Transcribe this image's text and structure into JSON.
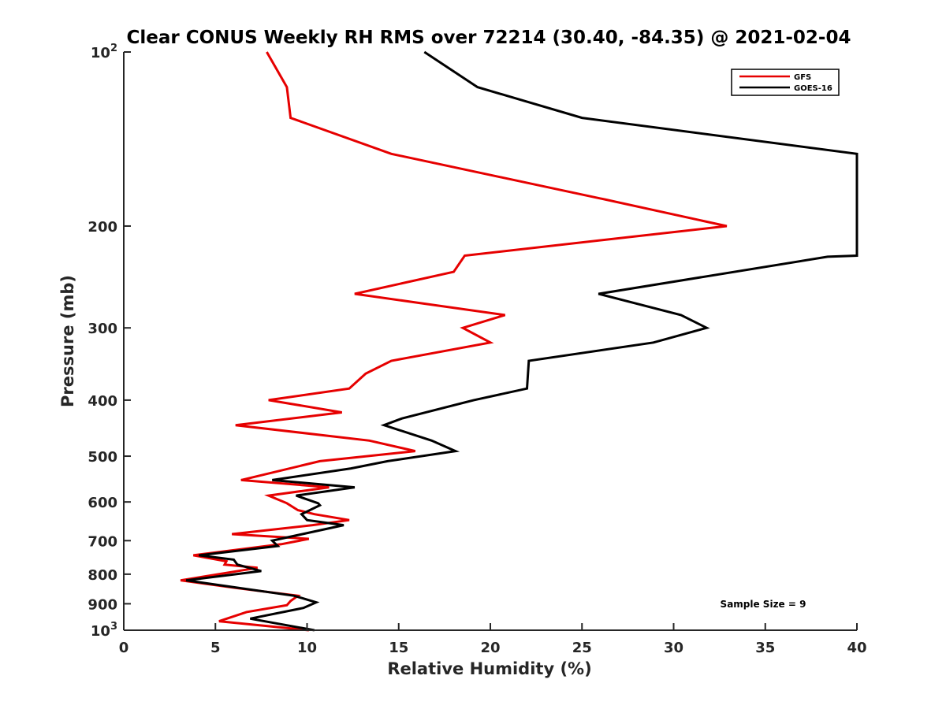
{
  "chart_data": {
    "type": "line",
    "title": "Clear CONUS Weekly RH RMS over 72214 (30.40, -84.35) @ 2021-02-04",
    "xlabel": "Relative Humidity (%)",
    "ylabel": "Pressure (mb)",
    "xlim": [
      0,
      40
    ],
    "ylim": [
      100,
      1000
    ],
    "yscale": "log",
    "y_reversed": true,
    "xticks": [
      0,
      5,
      10,
      15,
      20,
      25,
      30,
      35,
      40
    ],
    "xtick_labels": [
      "0",
      "5",
      "10",
      "15",
      "20",
      "25",
      "30",
      "35",
      "40"
    ],
    "yticks": [
      100,
      200,
      300,
      400,
      500,
      600,
      700,
      800,
      900,
      1000
    ],
    "ytick_labels": [
      {
        "base": "10",
        "exp": "2"
      },
      {
        "text": "200"
      },
      {
        "text": "300"
      },
      {
        "text": "400"
      },
      {
        "text": "500"
      },
      {
        "text": "600"
      },
      {
        "text": "700"
      },
      {
        "text": "800"
      },
      {
        "text": "900"
      },
      {
        "base": "10",
        "exp": "3"
      }
    ],
    "legend_position": "top-right",
    "annotation": "Sample Size = 9",
    "series": [
      {
        "name": "GFS",
        "color": "#e60000",
        "points": [
          [
            7.8,
            100
          ],
          [
            8.9,
            115
          ],
          [
            9.1,
            130
          ],
          [
            14.6,
            150
          ],
          [
            26.3,
            180
          ],
          [
            32.9,
            200
          ],
          [
            18.6,
            225
          ],
          [
            18.0,
            240
          ],
          [
            12.6,
            262
          ],
          [
            20.8,
            285
          ],
          [
            18.5,
            300
          ],
          [
            20.0,
            318
          ],
          [
            14.6,
            342
          ],
          [
            13.2,
            360
          ],
          [
            12.3,
            382
          ],
          [
            7.9,
            400
          ],
          [
            11.9,
            420
          ],
          [
            6.1,
            442
          ],
          [
            13.4,
            470
          ],
          [
            15.9,
            490
          ],
          [
            10.7,
            510
          ],
          [
            6.4,
            550
          ],
          [
            11.2,
            566
          ],
          [
            7.9,
            585
          ],
          [
            8.9,
            603
          ],
          [
            9.5,
            620
          ],
          [
            10.4,
            630
          ],
          [
            12.3,
            645
          ],
          [
            10.3,
            658
          ],
          [
            5.9,
            682
          ],
          [
            10.1,
            695
          ],
          [
            8.6,
            710
          ],
          [
            3.8,
            742
          ],
          [
            5.6,
            760
          ],
          [
            5.5,
            770
          ],
          [
            7.3,
            780
          ],
          [
            3.1,
            820
          ],
          [
            6.1,
            845
          ],
          [
            9.5,
            872
          ],
          [
            9.1,
            890
          ],
          [
            8.9,
            905
          ],
          [
            6.7,
            930
          ],
          [
            5.2,
            965
          ],
          [
            10.1,
            1000
          ]
        ]
      },
      {
        "name": "GOES-16",
        "color": "#000000",
        "points": [
          [
            16.4,
            100
          ],
          [
            19.3,
            115
          ],
          [
            25.0,
            130
          ],
          [
            40.0,
            150
          ],
          [
            40.0,
            225
          ],
          [
            38.4,
            226
          ],
          [
            25.9,
            262
          ],
          [
            30.4,
            285
          ],
          [
            31.8,
            300
          ],
          [
            28.9,
            318
          ],
          [
            22.1,
            342
          ],
          [
            22.0,
            382
          ],
          [
            19.1,
            400
          ],
          [
            15.2,
            430
          ],
          [
            14.2,
            442
          ],
          [
            16.8,
            470
          ],
          [
            18.1,
            490
          ],
          [
            14.4,
            510
          ],
          [
            12.4,
            525
          ],
          [
            8.1,
            550
          ],
          [
            12.6,
            566
          ],
          [
            9.4,
            585
          ],
          [
            10.6,
            603
          ],
          [
            10.7,
            608
          ],
          [
            9.7,
            630
          ],
          [
            10.0,
            645
          ],
          [
            12.0,
            658
          ],
          [
            8.1,
            700
          ],
          [
            8.4,
            715
          ],
          [
            4.1,
            742
          ],
          [
            6.0,
            755
          ],
          [
            6.2,
            770
          ],
          [
            7.5,
            790
          ],
          [
            3.4,
            820
          ],
          [
            9.3,
            872
          ],
          [
            10.5,
            895
          ],
          [
            9.8,
            915
          ],
          [
            6.9,
            955
          ],
          [
            10.4,
            1000
          ]
        ]
      }
    ]
  }
}
